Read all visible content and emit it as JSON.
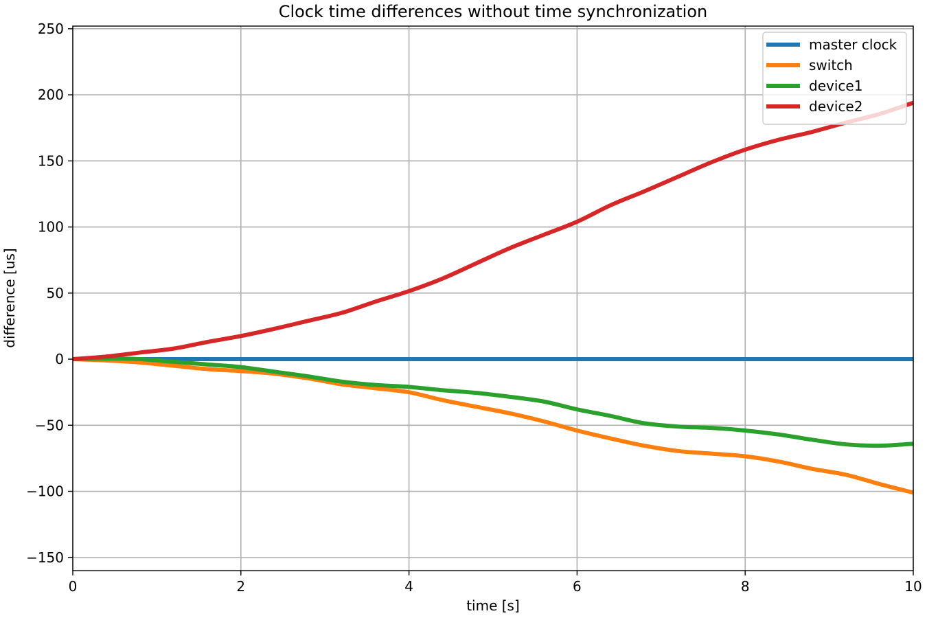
{
  "chart_data": {
    "type": "line",
    "title": "Clock time differences without time synchronization",
    "xlabel": "time [s]",
    "ylabel": "difference [us]",
    "xlim": [
      0,
      10
    ],
    "ylim": [
      -160,
      252
    ],
    "xticks": [
      0,
      2,
      4,
      6,
      8,
      10
    ],
    "xtick_labels": [
      "0",
      "2",
      "4",
      "6",
      "8",
      "10"
    ],
    "yticks": [
      -150,
      -100,
      -50,
      0,
      50,
      100,
      150,
      200,
      250
    ],
    "ytick_labels": [
      "−150",
      "−100",
      "−50",
      "0",
      "50",
      "100",
      "150",
      "200",
      "250"
    ],
    "grid": true,
    "legend_position": "top-right",
    "series": [
      {
        "name": "master clock",
        "color": "#1f77b4",
        "x": [
          0,
          10
        ],
        "y": [
          0,
          0
        ]
      },
      {
        "name": "switch",
        "color": "#ff7f0e",
        "x": [
          0,
          0.4,
          0.8,
          1.2,
          1.6,
          2.0,
          2.4,
          2.8,
          3.2,
          3.6,
          4.0,
          4.4,
          4.8,
          5.2,
          5.6,
          6.0,
          6.4,
          6.8,
          7.2,
          7.6,
          8.0,
          8.4,
          8.8,
          9.2,
          9.6,
          10.0
        ],
        "y": [
          0,
          -1,
          -2.5,
          -5,
          -7.5,
          -9,
          -11,
          -14.5,
          -19,
          -22,
          -25,
          -31,
          -36,
          -41,
          -47,
          -54,
          -60,
          -65.5,
          -69.5,
          -71.5,
          -73.5,
          -77.5,
          -83,
          -87.5,
          -94.5,
          -101
        ]
      },
      {
        "name": "device1",
        "color": "#2ca02c",
        "x": [
          0,
          0.4,
          0.8,
          1.2,
          1.6,
          2.0,
          2.4,
          2.8,
          3.2,
          3.6,
          4.0,
          4.4,
          4.8,
          5.2,
          5.6,
          6.0,
          6.4,
          6.8,
          7.2,
          7.6,
          8.0,
          8.4,
          8.8,
          9.2,
          9.6,
          10.0
        ],
        "y": [
          0,
          0.5,
          0,
          -2,
          -4,
          -6,
          -9.5,
          -13,
          -17,
          -19.5,
          -21,
          -23.5,
          -25.5,
          -28.5,
          -32,
          -38,
          -43,
          -48.5,
          -51,
          -52,
          -54,
          -57,
          -61,
          -64.5,
          -65.5,
          -64
        ]
      },
      {
        "name": "device2",
        "color": "#d62728",
        "x": [
          0,
          0.4,
          0.8,
          1.2,
          1.6,
          2.0,
          2.4,
          2.8,
          3.2,
          3.6,
          4.0,
          4.4,
          4.8,
          5.2,
          5.6,
          6.0,
          6.4,
          6.8,
          7.2,
          7.6,
          8.0,
          8.4,
          8.8,
          9.2,
          9.6,
          10.0
        ],
        "y": [
          0,
          2,
          5,
          8,
          13,
          17.5,
          23,
          29,
          35,
          43.5,
          51.5,
          61,
          72.5,
          84,
          94,
          104,
          116.5,
          127,
          138,
          149,
          158.5,
          166,
          172,
          179,
          185.5,
          194
        ]
      }
    ]
  }
}
